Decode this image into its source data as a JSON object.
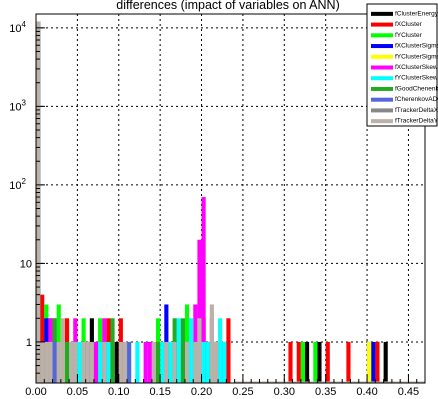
{
  "chart_data": {
    "type": "bar",
    "title": "differences (impact of variables on ANN)",
    "xlabel": "",
    "ylabel": "",
    "xlim": [
      0.0,
      0.47
    ],
    "ylim": [
      0.3,
      15000
    ],
    "y_scale": "log",
    "grid": true,
    "legend_placement": "top-right",
    "x_ticks": [
      {
        "value": 0.0,
        "label": "0.00"
      },
      {
        "value": 0.05,
        "label": "0.05"
      },
      {
        "value": 0.1,
        "label": "0.10"
      },
      {
        "value": 0.15,
        "label": "0.15"
      },
      {
        "value": 0.2,
        "label": "0.20"
      },
      {
        "value": 0.25,
        "label": "0.25"
      },
      {
        "value": 0.3,
        "label": "0.30"
      },
      {
        "value": 0.35,
        "label": "0.35"
      },
      {
        "value": 0.4,
        "label": "0.40"
      },
      {
        "value": 0.45,
        "label": "0.45"
      }
    ],
    "y_ticks": [
      {
        "value": 1,
        "label": "1"
      },
      {
        "value": 10,
        "label": "10"
      },
      {
        "value": 100,
        "label": "10",
        "exp": "2"
      },
      {
        "value": 1000,
        "label": "10",
        "exp": "3"
      },
      {
        "value": 10000,
        "label": "10",
        "exp": "4"
      }
    ],
    "bin_width": 0.005,
    "series": [
      {
        "name": "fClusterEnergy",
        "color": "#000000",
        "bins": [
          [
            0.0,
            12000
          ],
          [
            0.005,
            2
          ],
          [
            0.01,
            1
          ],
          [
            0.06,
            1
          ],
          [
            0.065,
            2
          ],
          [
            0.095,
            1
          ],
          [
            0.165,
            1
          ],
          [
            0.215,
            1
          ],
          [
            0.325,
            1
          ],
          [
            0.34,
            1
          ],
          [
            0.4,
            1
          ],
          [
            0.41,
            1
          ],
          [
            0.42,
            1
          ]
        ]
      },
      {
        "name": "fXCluster",
        "color": "#ff0000",
        "bins": [
          [
            0.0,
            12000
          ],
          [
            0.005,
            4
          ],
          [
            0.015,
            2
          ],
          [
            0.035,
            2
          ],
          [
            0.075,
            1
          ],
          [
            0.085,
            2
          ],
          [
            0.1,
            2
          ],
          [
            0.145,
            1
          ],
          [
            0.2,
            2
          ],
          [
            0.23,
            2
          ],
          [
            0.305,
            1
          ],
          [
            0.315,
            1
          ],
          [
            0.35,
            1
          ],
          [
            0.375,
            1
          ],
          [
            0.41,
            1
          ]
        ]
      },
      {
        "name": "fYCluster",
        "color": "#00ff00",
        "bins": [
          [
            0.0,
            12000
          ],
          [
            0.01,
            3
          ],
          [
            0.025,
            3
          ],
          [
            0.035,
            1
          ],
          [
            0.055,
            2
          ],
          [
            0.075,
            2
          ],
          [
            0.145,
            2
          ],
          [
            0.18,
            3
          ],
          [
            0.225,
            1
          ],
          [
            0.32,
            1
          ],
          [
            0.335,
            1
          ],
          [
            0.4,
            1
          ]
        ]
      },
      {
        "name": "fXClusterSigma",
        "color": "#0000ff",
        "bins": [
          [
            0.0,
            12000
          ],
          [
            0.01,
            2
          ],
          [
            0.06,
            1
          ],
          [
            0.09,
            1
          ],
          [
            0.155,
            3
          ],
          [
            0.165,
            1
          ],
          [
            0.205,
            1
          ],
          [
            0.405,
            1
          ]
        ]
      },
      {
        "name": "fYClusterSigma",
        "color": "#ffff00",
        "bins": [
          [
            0.0,
            12000
          ],
          [
            0.01,
            1
          ],
          [
            0.03,
            2
          ],
          [
            0.09,
            1
          ],
          [
            0.14,
            1
          ],
          [
            0.19,
            1
          ],
          [
            0.4,
            1
          ]
        ]
      },
      {
        "name": "fXClusterSkew",
        "color": "#ff00ff",
        "bins": [
          [
            0.0,
            12000
          ],
          [
            0.015,
            2
          ],
          [
            0.02,
            2
          ],
          [
            0.04,
            1
          ],
          [
            0.045,
            2
          ],
          [
            0.07,
            1
          ],
          [
            0.08,
            2
          ],
          [
            0.13,
            1
          ],
          [
            0.135,
            1
          ],
          [
            0.16,
            1
          ],
          [
            0.175,
            1
          ],
          [
            0.185,
            1
          ],
          [
            0.19,
            3
          ],
          [
            0.195,
            20
          ],
          [
            0.2,
            70
          ],
          [
            0.205,
            1
          ],
          [
            0.21,
            2
          ],
          [
            0.22,
            1
          ],
          [
            0.225,
            1
          ]
        ]
      },
      {
        "name": "fYClusterSkew",
        "color": "#00ffff",
        "bins": [
          [
            0.0,
            12000
          ],
          [
            0.02,
            1
          ],
          [
            0.04,
            1
          ],
          [
            0.05,
            1
          ],
          [
            0.075,
            1
          ],
          [
            0.085,
            1
          ],
          [
            0.11,
            1
          ],
          [
            0.12,
            1
          ],
          [
            0.15,
            1
          ],
          [
            0.16,
            1
          ],
          [
            0.165,
            1
          ],
          [
            0.17,
            2
          ],
          [
            0.18,
            1
          ],
          [
            0.185,
            2
          ],
          [
            0.19,
            1
          ],
          [
            0.2,
            1
          ],
          [
            0.205,
            1
          ],
          [
            0.21,
            1
          ],
          [
            0.215,
            1
          ],
          [
            0.22,
            2
          ],
          [
            0.225,
            1
          ]
        ]
      },
      {
        "name": "fGoodChenenkovHit",
        "color": "#22aa22",
        "bins": [
          [
            0.0,
            12000
          ],
          [
            0.02,
            2
          ],
          [
            0.035,
            1
          ],
          [
            0.09,
            2
          ],
          [
            0.145,
            1
          ],
          [
            0.165,
            2
          ],
          [
            0.175,
            2
          ]
        ]
      },
      {
        "name": "fCherenkovADC",
        "color": "#5566dd",
        "bins": [
          [
            0.0,
            12000
          ],
          [
            0.02,
            1
          ],
          [
            0.06,
            1
          ],
          [
            0.11,
            1
          ]
        ]
      },
      {
        "name": "fTrackerDeltaX",
        "color": "#888888",
        "bins": [
          [
            0.0,
            12000
          ],
          [
            0.01,
            1
          ]
        ]
      },
      {
        "name": "fTrackerDeltaY",
        "color": "#bbb1a8",
        "bins": [
          [
            0.0,
            12000
          ],
          [
            0.005,
            1
          ],
          [
            0.01,
            1
          ],
          [
            0.015,
            1
          ],
          [
            0.025,
            1
          ],
          [
            0.03,
            2
          ],
          [
            0.04,
            1
          ],
          [
            0.045,
            1
          ],
          [
            0.055,
            1
          ],
          [
            0.06,
            1
          ],
          [
            0.065,
            1
          ],
          [
            0.08,
            1
          ],
          [
            0.1,
            1
          ],
          [
            0.105,
            1
          ],
          [
            0.14,
            1
          ],
          [
            0.155,
            1
          ],
          [
            0.165,
            1
          ],
          [
            0.18,
            1
          ],
          [
            0.19,
            1
          ],
          [
            0.195,
            2
          ],
          [
            0.21,
            3
          ],
          [
            0.215,
            1
          ]
        ]
      }
    ]
  }
}
